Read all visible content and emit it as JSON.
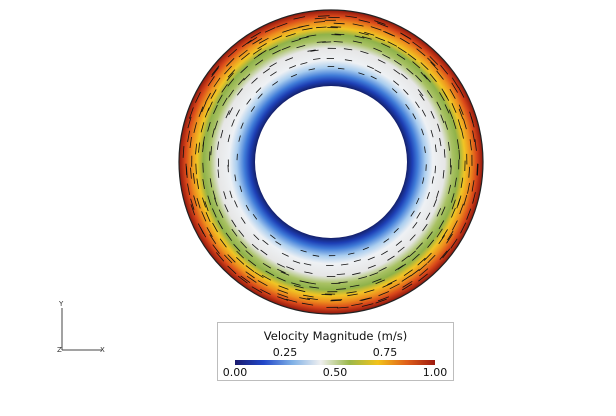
{
  "legend": {
    "title": "Velocity Magnitude (m/s)",
    "upper_ticks": [
      {
        "value": 0.25,
        "label": "0.25"
      },
      {
        "value": 0.75,
        "label": "0.75"
      }
    ],
    "lower_ticks": [
      {
        "value": 0.0,
        "label": "0.00"
      },
      {
        "value": 0.5,
        "label": "0.50"
      },
      {
        "value": 1.0,
        "label": "1.00"
      }
    ],
    "range": [
      0.0,
      1.0
    ],
    "colormap": [
      "#1a1a6e",
      "#2147c9",
      "#7fb0e6",
      "#f0f0f0",
      "#9bb84a",
      "#f2c31a",
      "#e0601a",
      "#9e1a0f"
    ]
  },
  "axes_triad": {
    "x_label": "X",
    "y_label": "Y",
    "z_label": "Z"
  }
}
